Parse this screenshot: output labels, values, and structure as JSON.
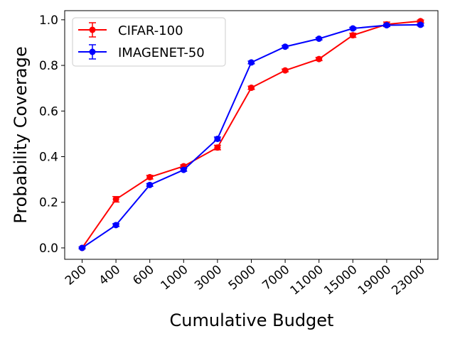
{
  "chart_data": {
    "type": "line",
    "xlabel": "Cumulative Budget",
    "ylabel": "Probability Coverage",
    "categories": [
      "200",
      "400",
      "600",
      "1000",
      "3000",
      "5000",
      "7000",
      "11000",
      "15000",
      "19000",
      "23000"
    ],
    "ylim": [
      -0.05,
      1.04
    ],
    "yticks": [
      "0.0",
      "0.2",
      "0.4",
      "0.6",
      "0.8",
      "1.0"
    ],
    "grid": false,
    "legend_position": "top-left",
    "series": [
      {
        "name": "CIFAR-100",
        "color": "#ff0000",
        "values": [
          0.0,
          0.213,
          0.31,
          0.358,
          0.44,
          0.702,
          0.778,
          0.828,
          0.932,
          0.98,
          0.994
        ],
        "errors": [
          0.004,
          0.012,
          0.008,
          0.006,
          0.01,
          0.007,
          0.006,
          0.007,
          0.009,
          0.01,
          0.005
        ]
      },
      {
        "name": "IMAGENET-50",
        "color": "#0000ff",
        "values": [
          0.0,
          0.1,
          0.276,
          0.342,
          0.478,
          0.813,
          0.882,
          0.917,
          0.962,
          0.976,
          0.978
        ],
        "errors": [
          0.004,
          0.006,
          0.006,
          0.006,
          0.008,
          0.006,
          0.005,
          0.005,
          0.005,
          0.005,
          0.005
        ]
      }
    ]
  }
}
